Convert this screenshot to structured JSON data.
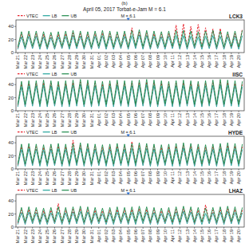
{
  "figure": {
    "label": "(b)",
    "title": "April 05, 2017 Torbat-e-Jam M = 6.1"
  },
  "chart_data": [
    {
      "type": "line",
      "title": "LCK3",
      "legend": "top-left",
      "grid": false,
      "ylim": [
        0,
        50
      ],
      "yticks": [
        0,
        20,
        40
      ],
      "categories": [
        "Mar 21",
        null,
        "Mar 22",
        null,
        "Mar 23",
        null,
        "Mar 24",
        null,
        "Mar 25",
        null,
        "Mar 26",
        null,
        "Mar 27",
        null,
        "Mar 28",
        null,
        "Mar 29",
        null,
        "Mar 30",
        null,
        "Mar 31",
        null,
        "Apr 01",
        null,
        "Apr 02",
        null,
        "Apr 03",
        null,
        "Apr 04",
        null,
        "Apr 05",
        null,
        "Apr 06",
        null,
        "Apr 07",
        null,
        "Apr 08",
        null,
        "Apr 09",
        null,
        "Apr 10",
        null,
        "Apr 11",
        null,
        "Apr 12",
        null,
        "Apr 13",
        null,
        "Apr 14",
        null,
        "Apr 15",
        null,
        "Apr 16",
        null,
        "Apr 17",
        null,
        "Apr 18",
        null,
        "Apr 19",
        null,
        "Apr 20",
        null
      ],
      "annotations": [
        {
          "text": "M = 6.1",
          "x": "Apr 05"
        }
      ],
      "series": [
        {
          "name": "VTEC",
          "color": "#e8202a",
          "line_style": "dashed",
          "values": [
            7,
            28,
            7,
            29,
            8,
            29,
            7,
            28,
            7,
            27,
            7,
            28,
            8,
            29,
            7,
            30,
            8,
            29,
            7,
            28,
            7,
            29,
            8,
            30,
            7,
            29,
            7,
            28,
            8,
            29,
            7,
            38,
            8,
            31,
            7,
            30,
            7,
            29,
            8,
            28,
            7,
            29,
            8,
            42,
            7,
            44,
            7,
            40,
            8,
            43,
            7,
            38,
            8,
            36,
            7,
            37,
            7,
            28,
            8,
            29,
            7,
            36
          ]
        },
        {
          "name": "LB",
          "color": "#22a39b",
          "line_style": "solid",
          "values": [
            5,
            24,
            5,
            25,
            6,
            25,
            5,
            24,
            5,
            23,
            5,
            24,
            6,
            25,
            5,
            26,
            6,
            25,
            5,
            24,
            5,
            25,
            6,
            26,
            5,
            25,
            5,
            24,
            6,
            25,
            5,
            26,
            6,
            27,
            5,
            26,
            5,
            25,
            6,
            24,
            5,
            25,
            6,
            26,
            5,
            26,
            5,
            25,
            6,
            24,
            5,
            25,
            6,
            26,
            5,
            25,
            5,
            24,
            6,
            25,
            5,
            26
          ]
        },
        {
          "name": "UB",
          "color": "#1c8a4a",
          "line_style": "solid",
          "values": [
            9,
            32,
            9,
            33,
            10,
            33,
            9,
            32,
            9,
            31,
            9,
            32,
            10,
            33,
            9,
            34,
            10,
            33,
            9,
            32,
            9,
            33,
            10,
            34,
            9,
            33,
            9,
            32,
            10,
            33,
            9,
            34,
            10,
            35,
            9,
            34,
            9,
            33,
            10,
            32,
            9,
            33,
            10,
            34,
            9,
            34,
            9,
            33,
            10,
            32,
            9,
            33,
            10,
            34,
            9,
            33,
            9,
            32,
            10,
            33,
            9,
            34
          ]
        }
      ]
    },
    {
      "type": "line",
      "title": "IISC",
      "legend": "top-left",
      "grid": false,
      "ylim": [
        0,
        50
      ],
      "yticks": [
        0,
        20,
        40
      ],
      "categories": [
        "Mar 21",
        null,
        "Mar 22",
        null,
        "Mar 23",
        null,
        "Mar 24",
        null,
        "Mar 25",
        null,
        "Mar 26",
        null,
        "Mar 27",
        null,
        "Mar 28",
        null,
        "Mar 29",
        null,
        "Mar 30",
        null,
        "Mar 31",
        null,
        "Apr 01",
        null,
        "Apr 02",
        null,
        "Apr 03",
        null,
        "Apr 04",
        null,
        "Apr 05",
        null,
        "Apr 06",
        null,
        "Apr 07",
        null,
        "Apr 08",
        null,
        "Apr 09",
        null,
        "Apr 10",
        null,
        "Apr 11",
        null,
        "Apr 12",
        null,
        "Apr 13",
        null,
        "Apr 14",
        null,
        "Apr 15",
        null,
        "Apr 16",
        null,
        "Apr 17",
        null,
        "Apr 18",
        null,
        "Apr 19",
        null,
        "Apr 20",
        null
      ],
      "series": [
        {
          "name": "VTEC",
          "color": "#e8202a",
          "line_style": "dashed",
          "values": [
            8,
            41,
            8,
            42,
            9,
            42,
            8,
            43,
            8,
            42,
            9,
            41,
            8,
            42,
            8,
            43,
            9,
            44,
            8,
            43,
            8,
            42,
            9,
            41,
            8,
            42,
            8,
            43,
            9,
            42,
            8,
            42,
            8,
            43,
            9,
            44,
            8,
            43,
            8,
            42,
            9,
            41,
            8,
            42,
            8,
            43,
            9,
            42,
            8,
            41,
            8,
            42,
            9,
            43,
            8,
            44,
            8,
            43,
            9,
            42,
            8,
            41
          ]
        },
        {
          "name": "LB",
          "color": "#22a39b",
          "line_style": "solid",
          "values": [
            6,
            37,
            6,
            38,
            7,
            38,
            6,
            39,
            6,
            38,
            7,
            37,
            6,
            38,
            6,
            39,
            7,
            40,
            6,
            39,
            6,
            38,
            7,
            37,
            6,
            38,
            6,
            39,
            7,
            38,
            6,
            38,
            6,
            39,
            7,
            40,
            6,
            39,
            6,
            38,
            7,
            37,
            6,
            38,
            6,
            39,
            7,
            38,
            6,
            37,
            6,
            38,
            7,
            39,
            6,
            40,
            6,
            39,
            7,
            38,
            6,
            37
          ]
        },
        {
          "name": "UB",
          "color": "#1c8a4a",
          "line_style": "solid",
          "values": [
            10,
            45,
            10,
            46,
            11,
            46,
            10,
            47,
            10,
            46,
            11,
            45,
            10,
            46,
            10,
            47,
            11,
            48,
            10,
            47,
            10,
            46,
            11,
            45,
            10,
            46,
            10,
            47,
            11,
            46,
            10,
            46,
            10,
            47,
            11,
            48,
            10,
            47,
            10,
            46,
            11,
            45,
            10,
            46,
            10,
            47,
            11,
            46,
            10,
            45,
            10,
            46,
            11,
            47,
            10,
            48,
            10,
            47,
            11,
            46,
            10,
            45
          ]
        }
      ]
    },
    {
      "type": "line",
      "title": "HYDE",
      "legend": "top-left",
      "grid": false,
      "ylim": [
        0,
        50
      ],
      "yticks": [
        0,
        20,
        40
      ],
      "categories": [
        "Mar 21",
        null,
        "Mar 22",
        null,
        "Mar 23",
        null,
        "Mar 24",
        null,
        "Mar 25",
        null,
        "Mar 26",
        null,
        "Mar 27",
        null,
        "Mar 28",
        null,
        "Mar 29",
        null,
        "Mar 30",
        null,
        "Mar 31",
        null,
        "Apr 01",
        null,
        "Apr 02",
        null,
        "Apr 03",
        null,
        "Apr 04",
        null,
        "Apr 05",
        null,
        "Apr 06",
        null,
        "Apr 07",
        null,
        "Apr 08",
        null,
        "Apr 09",
        null,
        "Apr 10",
        null,
        "Apr 11",
        null,
        "Apr 12",
        null,
        "Apr 13",
        null,
        "Apr 14",
        null,
        "Apr 15",
        null,
        "Apr 16",
        null,
        "Apr 17",
        null,
        "Apr 18",
        null,
        "Apr 19",
        null,
        "Apr 20",
        null
      ],
      "annotations": [
        {
          "text": "M = 6.1",
          "x": "Apr 05"
        }
      ],
      "series": [
        {
          "name": "VTEC",
          "color": "#e8202a",
          "line_style": "dashed",
          "values": [
            6,
            34,
            6,
            35,
            7,
            34,
            6,
            33,
            6,
            34,
            7,
            35,
            6,
            34,
            6,
            44,
            7,
            36,
            6,
            35,
            6,
            34,
            7,
            33,
            6,
            34,
            6,
            35,
            7,
            34,
            6,
            42,
            6,
            36,
            7,
            35,
            6,
            34,
            6,
            33,
            7,
            34,
            6,
            35,
            6,
            36,
            7,
            35,
            6,
            34,
            6,
            33,
            7,
            34,
            6,
            35,
            6,
            36,
            7,
            35,
            6,
            34
          ]
        },
        {
          "name": "LB",
          "color": "#22a39b",
          "line_style": "solid",
          "values": [
            4,
            30,
            4,
            31,
            5,
            30,
            4,
            29,
            4,
            30,
            5,
            31,
            4,
            30,
            4,
            31,
            5,
            32,
            4,
            31,
            4,
            30,
            5,
            29,
            4,
            30,
            4,
            31,
            5,
            30,
            4,
            31,
            4,
            32,
            5,
            31,
            4,
            30,
            4,
            29,
            5,
            30,
            4,
            31,
            4,
            32,
            5,
            31,
            4,
            30,
            4,
            29,
            5,
            30,
            4,
            31,
            4,
            32,
            5,
            31,
            4,
            30
          ]
        },
        {
          "name": "UB",
          "color": "#1c8a4a",
          "line_style": "solid",
          "values": [
            8,
            38,
            8,
            39,
            9,
            38,
            8,
            37,
            8,
            38,
            9,
            39,
            8,
            38,
            8,
            39,
            9,
            40,
            8,
            39,
            8,
            38,
            9,
            37,
            8,
            38,
            8,
            39,
            9,
            38,
            8,
            39,
            8,
            40,
            9,
            39,
            8,
            38,
            8,
            37,
            9,
            38,
            8,
            39,
            8,
            40,
            9,
            39,
            8,
            38,
            8,
            37,
            9,
            38,
            8,
            39,
            8,
            40,
            9,
            39,
            8,
            38
          ]
        }
      ]
    },
    {
      "type": "line",
      "title": "LHAZ",
      "legend": "top-left",
      "grid": false,
      "ylim": [
        0,
        50
      ],
      "yticks": [
        0,
        20,
        40
      ],
      "categories": [
        "Mar 21",
        null,
        "Mar 22",
        null,
        "Mar 23",
        null,
        "Mar 24",
        null,
        "Mar 25",
        null,
        "Mar 26",
        null,
        "Mar 27",
        null,
        "Mar 28",
        null,
        "Mar 29",
        null,
        "Mar 30",
        null,
        "Mar 31",
        null,
        "Apr 01",
        null,
        "Apr 02",
        null,
        "Apr 03",
        null,
        "Apr 04",
        null,
        "Apr 05",
        null,
        "Apr 06",
        null,
        "Apr 07",
        null,
        "Apr 08",
        null,
        "Apr 09",
        null,
        "Apr 10",
        null,
        "Apr 11",
        null,
        "Apr 12",
        null,
        "Apr 13",
        null,
        "Apr 14",
        null,
        "Apr 15",
        null,
        "Apr 16",
        null,
        "Apr 17",
        null,
        "Apr 18",
        null,
        "Apr 19",
        null,
        "Apr 20",
        null
      ],
      "annotations": [
        {
          "text": "M = 6.1",
          "x": "Apr 05"
        }
      ],
      "series": [
        {
          "name": "VTEC",
          "color": "#e8202a",
          "line_style": "dashed",
          "values": [
            6,
            26,
            6,
            27,
            7,
            26,
            6,
            25,
            6,
            26,
            7,
            36,
            6,
            26,
            6,
            27,
            7,
            28,
            6,
            27,
            6,
            26,
            7,
            25,
            6,
            26,
            6,
            27,
            7,
            26,
            6,
            27,
            6,
            28,
            7,
            27,
            6,
            26,
            6,
            25,
            7,
            26,
            6,
            27,
            6,
            28,
            7,
            27,
            6,
            26,
            7,
            34,
            7,
            26,
            6,
            27,
            6,
            28,
            7,
            27,
            6,
            26
          ]
        },
        {
          "name": "LB",
          "color": "#22a39b",
          "line_style": "solid",
          "values": [
            4,
            22,
            4,
            23,
            5,
            22,
            4,
            21,
            4,
            22,
            5,
            23,
            4,
            22,
            4,
            23,
            5,
            24,
            4,
            23,
            4,
            22,
            5,
            21,
            4,
            22,
            4,
            23,
            5,
            22,
            4,
            23,
            4,
            24,
            5,
            23,
            4,
            22,
            4,
            21,
            5,
            22,
            4,
            23,
            4,
            24,
            5,
            23,
            4,
            22,
            4,
            21,
            5,
            22,
            4,
            23,
            4,
            24,
            5,
            23,
            4,
            22
          ]
        },
        {
          "name": "UB",
          "color": "#1c8a4a",
          "line_style": "solid",
          "values": [
            8,
            30,
            8,
            31,
            9,
            30,
            8,
            29,
            8,
            30,
            9,
            31,
            8,
            30,
            8,
            31,
            9,
            32,
            8,
            31,
            8,
            30,
            9,
            29,
            8,
            30,
            8,
            31,
            9,
            30,
            8,
            31,
            8,
            32,
            9,
            31,
            8,
            30,
            8,
            29,
            9,
            30,
            8,
            31,
            8,
            32,
            9,
            31,
            8,
            30,
            8,
            29,
            9,
            30,
            8,
            31,
            8,
            32,
            9,
            31,
            8,
            30
          ]
        }
      ]
    }
  ]
}
